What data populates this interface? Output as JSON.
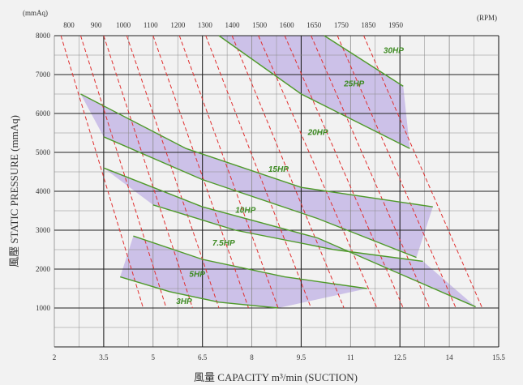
{
  "chart_data": {
    "type": "line",
    "title": "",
    "unit_top_left": "(mmAq)",
    "top_right_label": "(RPM)",
    "xlabel": "風量 CAPACITY m³/min (SUCTION)",
    "ylabel": "風壓 STATIC PRESSURE (mmAq)",
    "xlim": [
      2,
      15.5
    ],
    "ylim": [
      0,
      8000
    ],
    "x_ticks": [
      "2",
      "3.5",
      "5",
      "6.5",
      "8",
      "9.5",
      "11",
      "12.5",
      "14",
      "15.5"
    ],
    "y_ticks": [
      "8000",
      "7000",
      "6000",
      "5000",
      "4000",
      "3000",
      "2000",
      "1000"
    ],
    "rpm_labels": [
      "800",
      "900",
      "1000",
      "1100",
      "1200",
      "1300",
      "1400",
      "1500",
      "1600",
      "1650",
      "1750",
      "1850",
      "1950"
    ],
    "grid": true,
    "colors": {
      "curve": "#4f9a2a",
      "label": "#3d8a22",
      "band": "#c5b9e6",
      "rpm_line": "#e03030",
      "grid_dark": "#222222",
      "grid_light": "#8a8a8a"
    },
    "series": [
      {
        "name": "3HP",
        "x": [
          4.0,
          5.5,
          7.0,
          8.8
        ],
        "y": [
          1800,
          1420,
          1150,
          1000
        ]
      },
      {
        "name": "5HP",
        "x": [
          4.4,
          6.5,
          9.0,
          11.5
        ],
        "y": [
          2850,
          2250,
          1800,
          1500
        ]
      },
      {
        "name": "7.5HP",
        "x": [
          5.0,
          7.5,
          10.5,
          13.2
        ],
        "y": [
          3650,
          3000,
          2500,
          2200
        ]
      },
      {
        "name": "10HP",
        "x": [
          3.5,
          6.5,
          10.0,
          14.8
        ],
        "y": [
          4600,
          3600,
          2800,
          1030
        ]
      },
      {
        "name": "15HP",
        "x": [
          3.5,
          6.5,
          10.0,
          13.0
        ],
        "y": [
          5400,
          4300,
          3300,
          2300
        ]
      },
      {
        "name": "20HP",
        "x": [
          2.8,
          6.0,
          9.5,
          13.5
        ],
        "y": [
          6500,
          5100,
          4100,
          3600
        ]
      },
      {
        "name": "25HP",
        "x": [
          7.0,
          9.5,
          12.8
        ],
        "y": [
          8000,
          6500,
          5100
        ]
      },
      {
        "name": "30HP",
        "x": [
          10.2,
          12.6
        ],
        "y": [
          8000,
          6700
        ]
      }
    ],
    "annotations": [
      {
        "text": "3HP",
        "x": 5.7,
        "y": 1100
      },
      {
        "text": "5HP",
        "x": 6.1,
        "y": 1800
      },
      {
        "text": "7.5HP",
        "x": 6.8,
        "y": 2600
      },
      {
        "text": "10HP",
        "x": 7.5,
        "y": 3450
      },
      {
        "text": "15HP",
        "x": 8.5,
        "y": 4500
      },
      {
        "text": "20HP",
        "x": 9.7,
        "y": 5450
      },
      {
        "text": "25HP",
        "x": 10.8,
        "y": 6700
      },
      {
        "text": "30HP",
        "x": 12.0,
        "y": 7550
      }
    ],
    "bands": [
      {
        "x": [
          2.8,
          6.0,
          9.5,
          13.5,
          13.0,
          10.0,
          6.5,
          3.5
        ],
        "y": [
          6500,
          5100,
          4100,
          3600,
          2300,
          3300,
          4300,
          5400
        ]
      },
      {
        "x": [
          3.5,
          6.5,
          10.0,
          14.8,
          13.2,
          10.5,
          7.5,
          5.0
        ],
        "y": [
          4600,
          3600,
          2800,
          1030,
          2200,
          2500,
          3000,
          3650
        ]
      },
      {
        "x": [
          4.4,
          6.5,
          9.0,
          11.5,
          8.8,
          7.0,
          5.5,
          4.0
        ],
        "y": [
          2850,
          2250,
          1800,
          1500,
          1000,
          1150,
          1420,
          1800
        ]
      },
      {
        "x": [
          7.0,
          9.5,
          12.8,
          12.6,
          10.2
        ],
        "y": [
          8000,
          6500,
          5100,
          6700,
          8000
        ]
      }
    ],
    "rpm_lines": [
      {
        "rpm": "800",
        "x": [
          2.2,
          4.7
        ]
      },
      {
        "rpm": "900",
        "x": [
          2.8,
          5.4
        ]
      },
      {
        "rpm": "1000",
        "x": [
          3.5,
          6.2
        ]
      },
      {
        "rpm": "1100",
        "x": [
          4.2,
          7.0
        ]
      },
      {
        "rpm": "1200",
        "x": [
          5.0,
          7.9
        ]
      },
      {
        "rpm": "1300",
        "x": [
          5.8,
          8.8
        ]
      },
      {
        "rpm": "1400",
        "x": [
          6.6,
          9.8
        ]
      },
      {
        "rpm": "1500",
        "x": [
          7.4,
          10.8
        ]
      },
      {
        "rpm": "1600",
        "x": [
          8.2,
          11.8
        ]
      },
      {
        "rpm": "1650",
        "x": [
          9.0,
          12.6
        ]
      },
      {
        "rpm": "1750",
        "x": [
          9.8,
          13.4
        ]
      },
      {
        "rpm": "1850",
        "x": [
          10.6,
          14.2
        ]
      },
      {
        "rpm": "1950",
        "x": [
          11.4,
          15.0
        ]
      }
    ]
  }
}
